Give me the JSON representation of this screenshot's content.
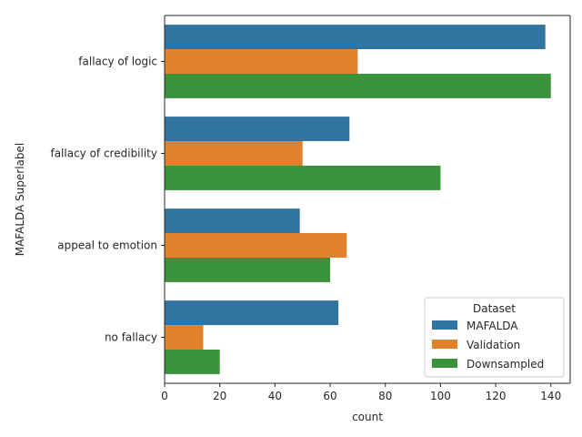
{
  "chart_data": {
    "type": "bar",
    "orientation": "horizontal",
    "categories": [
      "fallacy of logic",
      "fallacy of credibility",
      "appeal to emotion",
      "no fallacy"
    ],
    "series": [
      {
        "name": "MAFALDA",
        "color": "#3274a1",
        "values": [
          138,
          67,
          49,
          63
        ]
      },
      {
        "name": "Validation",
        "color": "#e1812c",
        "values": [
          70,
          50,
          66,
          14
        ]
      },
      {
        "name": "Downsampled",
        "color": "#3a923a",
        "values": [
          140,
          100,
          60,
          20
        ]
      }
    ],
    "xlabel": "count",
    "ylabel": "MAFALDA Superlabel",
    "xlim": [
      0,
      147
    ],
    "xticks": [
      0,
      20,
      40,
      60,
      80,
      100,
      120,
      140
    ],
    "grid": false,
    "legend": {
      "title": "Dataset",
      "placement": "lower right"
    }
  }
}
